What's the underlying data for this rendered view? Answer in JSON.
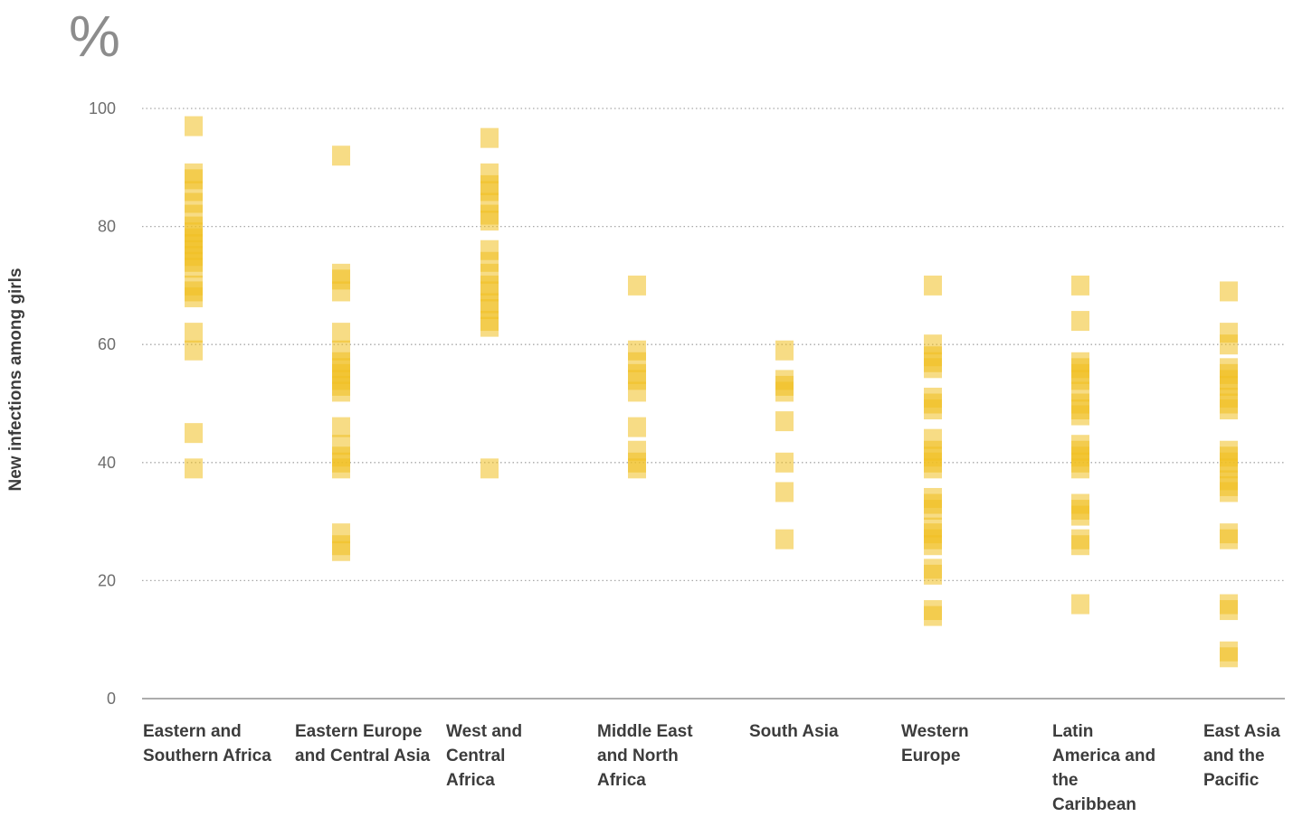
{
  "chart_data": {
    "type": "scatter",
    "unit": "%",
    "ylabel": "New infections among girls",
    "xlabel": "",
    "ylim": [
      0,
      100
    ],
    "yticks": [
      "0",
      "20",
      "40",
      "60",
      "80",
      "100"
    ],
    "grid": true,
    "marker_color": "#f0c020",
    "categories": [
      "Eastern and Southern Africa",
      "Eastern Europe and Central Asia",
      "West and Central Africa",
      "Middle East and North Africa",
      "South Asia",
      "Western Europe",
      "Latin America and the Caribbean",
      "East Asia and the Pacific"
    ],
    "values": [
      [
        97,
        89,
        88,
        86,
        84,
        82,
        80,
        79,
        78,
        77,
        76,
        75,
        74,
        73,
        70,
        69,
        68,
        62,
        59,
        45,
        39
      ],
      [
        92,
        72,
        71,
        69,
        62,
        59,
        57,
        56,
        55,
        54,
        53,
        52,
        46,
        43,
        41,
        40,
        39,
        28,
        26,
        25
      ],
      [
        95,
        89,
        87,
        86,
        84,
        82,
        81,
        76,
        74,
        72,
        70,
        69,
        67,
        66,
        64,
        63,
        39
      ],
      [
        70,
        59,
        57,
        55,
        54,
        52,
        46,
        42,
        40,
        39
      ],
      [
        59,
        54,
        53,
        52,
        47,
        40,
        35,
        27
      ],
      [
        70,
        60,
        58,
        57,
        56,
        51,
        50,
        49,
        44,
        42,
        41,
        40,
        39,
        34,
        33,
        32,
        29,
        28,
        27,
        26,
        22,
        21,
        15,
        14
      ],
      [
        70,
        64,
        57,
        56,
        55,
        54,
        52,
        50,
        49,
        48,
        43,
        42,
        41,
        40,
        39,
        33,
        32,
        31,
        27,
        26,
        16
      ],
      [
        69,
        62,
        60,
        56,
        55,
        54,
        53,
        51,
        50,
        49,
        42,
        41,
        40,
        39,
        37,
        36,
        35,
        28,
        27,
        16,
        15,
        8,
        7
      ]
    ]
  },
  "labels": {
    "unit": "%",
    "ylabel": "New infections among girls",
    "yticks": [
      "0",
      "20",
      "40",
      "60",
      "80",
      "100"
    ],
    "categories": [
      "Eastern and Southern Africa",
      "Eastern Europe and Central Asia",
      "West and Central Africa",
      "Middle East and North Africa",
      "South Asia",
      "Western Europe",
      "Latin America and the Caribbean",
      "East Asia and the Pacific"
    ]
  }
}
